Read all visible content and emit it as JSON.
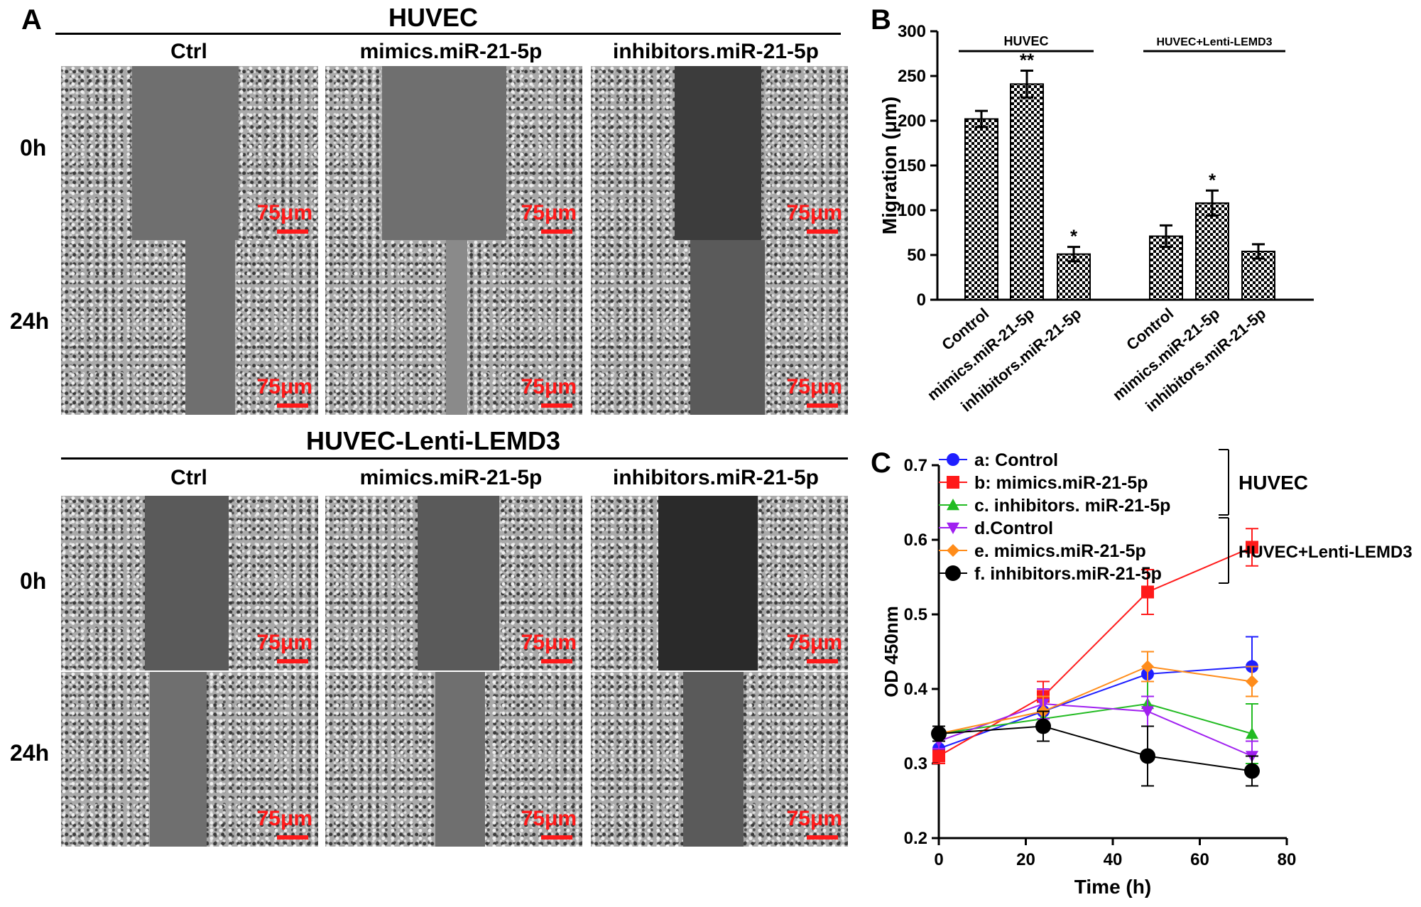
{
  "panelA": {
    "letter": "A",
    "groups": [
      {
        "title": "HUVEC",
        "columns": [
          "Ctrl",
          "mimics.miR-21-5p",
          "inhibitors.miR-21-5p"
        ],
        "rows": [
          "0h",
          "24h"
        ]
      },
      {
        "title": "HUVEC-Lenti-LEMD3",
        "columns": [
          "Ctrl",
          "mimics.miR-21-5p",
          "inhibitors.miR-21-5p"
        ],
        "rows": [
          "0h",
          "24h"
        ]
      }
    ],
    "scale_label": "75μm",
    "scale_color": "#ff1a1a"
  },
  "chart_data": [
    {
      "panel": "B",
      "type": "bar",
      "ylabel": "Migration (μm)",
      "ylim": [
        0,
        300
      ],
      "yticks": [
        0,
        50,
        100,
        150,
        200,
        250,
        300
      ],
      "groups": [
        {
          "label": "HUVEC",
          "categories": [
            "Control",
            "mimics.miR-21-5p",
            "inhibitors.miR-21-5p"
          ],
          "values": [
            202,
            241,
            51
          ],
          "errors": [
            9,
            15,
            8
          ],
          "annotations": [
            "",
            "**",
            "*"
          ]
        },
        {
          "label": "HUVEC+Lenti-LEMD3",
          "categories": [
            "Control",
            "mimics.miR-21-5p",
            "inhibitors.miR-21-5p"
          ],
          "values": [
            71,
            108,
            54
          ],
          "errors": [
            12,
            14,
            8
          ],
          "annotations": [
            "",
            "*",
            ""
          ]
        }
      ]
    },
    {
      "panel": "C",
      "type": "line",
      "xlabel": "Time (h)",
      "ylabel": "OD 450nm",
      "xlim": [
        0,
        80
      ],
      "ylim": [
        0.2,
        0.7
      ],
      "xticks": [
        0,
        20,
        40,
        60,
        80
      ],
      "yticks": [
        "0.2",
        "0.3",
        "0.4",
        "0.5",
        "0.6",
        "0.7"
      ],
      "x": [
        0,
        24,
        48,
        72
      ],
      "series": [
        {
          "name": "a: Control",
          "color": "#1f1fff",
          "marker": "circle",
          "values": [
            0.32,
            0.37,
            0.42,
            0.43
          ],
          "errors": [
            0.01,
            0.02,
            0.03,
            0.04
          ]
        },
        {
          "name": "b: mimics.miR-21-5p",
          "color": "#ff1a1a",
          "marker": "square",
          "values": [
            0.31,
            0.39,
            0.53,
            0.59
          ],
          "errors": [
            0.01,
            0.02,
            0.03,
            0.025
          ]
        },
        {
          "name": "c. inhibitors. miR-21-5p",
          "color": "#22bb22",
          "marker": "triangle-up",
          "values": [
            0.34,
            0.36,
            0.38,
            0.34
          ],
          "errors": [
            0.01,
            0.01,
            0.03,
            0.04
          ]
        },
        {
          "name": "d.Control",
          "color": "#a020f0",
          "marker": "triangle-down",
          "values": [
            0.33,
            0.38,
            0.37,
            0.31
          ],
          "errors": [
            0.01,
            0.02,
            0.02,
            0.02
          ]
        },
        {
          "name": "e. mimics.miR-21-5p",
          "color": "#ff8c1a",
          "marker": "diamond",
          "values": [
            0.34,
            0.37,
            0.43,
            0.41
          ],
          "errors": [
            0.01,
            0.02,
            0.02,
            0.02
          ]
        },
        {
          "name": "f. inhibitors.miR-21-5p",
          "color": "#000000",
          "marker": "circle",
          "values": [
            0.34,
            0.35,
            0.31,
            0.29
          ],
          "errors": [
            0.01,
            0.02,
            0.04,
            0.02
          ]
        }
      ],
      "legend_groups": [
        {
          "label": "HUVEC",
          "members": [
            0,
            1,
            2
          ]
        },
        {
          "label": "HUVEC+Lenti-LEMD3",
          "members": [
            3,
            4,
            5
          ]
        }
      ]
    }
  ],
  "panel_letters": {
    "B": "B",
    "C": "C"
  }
}
